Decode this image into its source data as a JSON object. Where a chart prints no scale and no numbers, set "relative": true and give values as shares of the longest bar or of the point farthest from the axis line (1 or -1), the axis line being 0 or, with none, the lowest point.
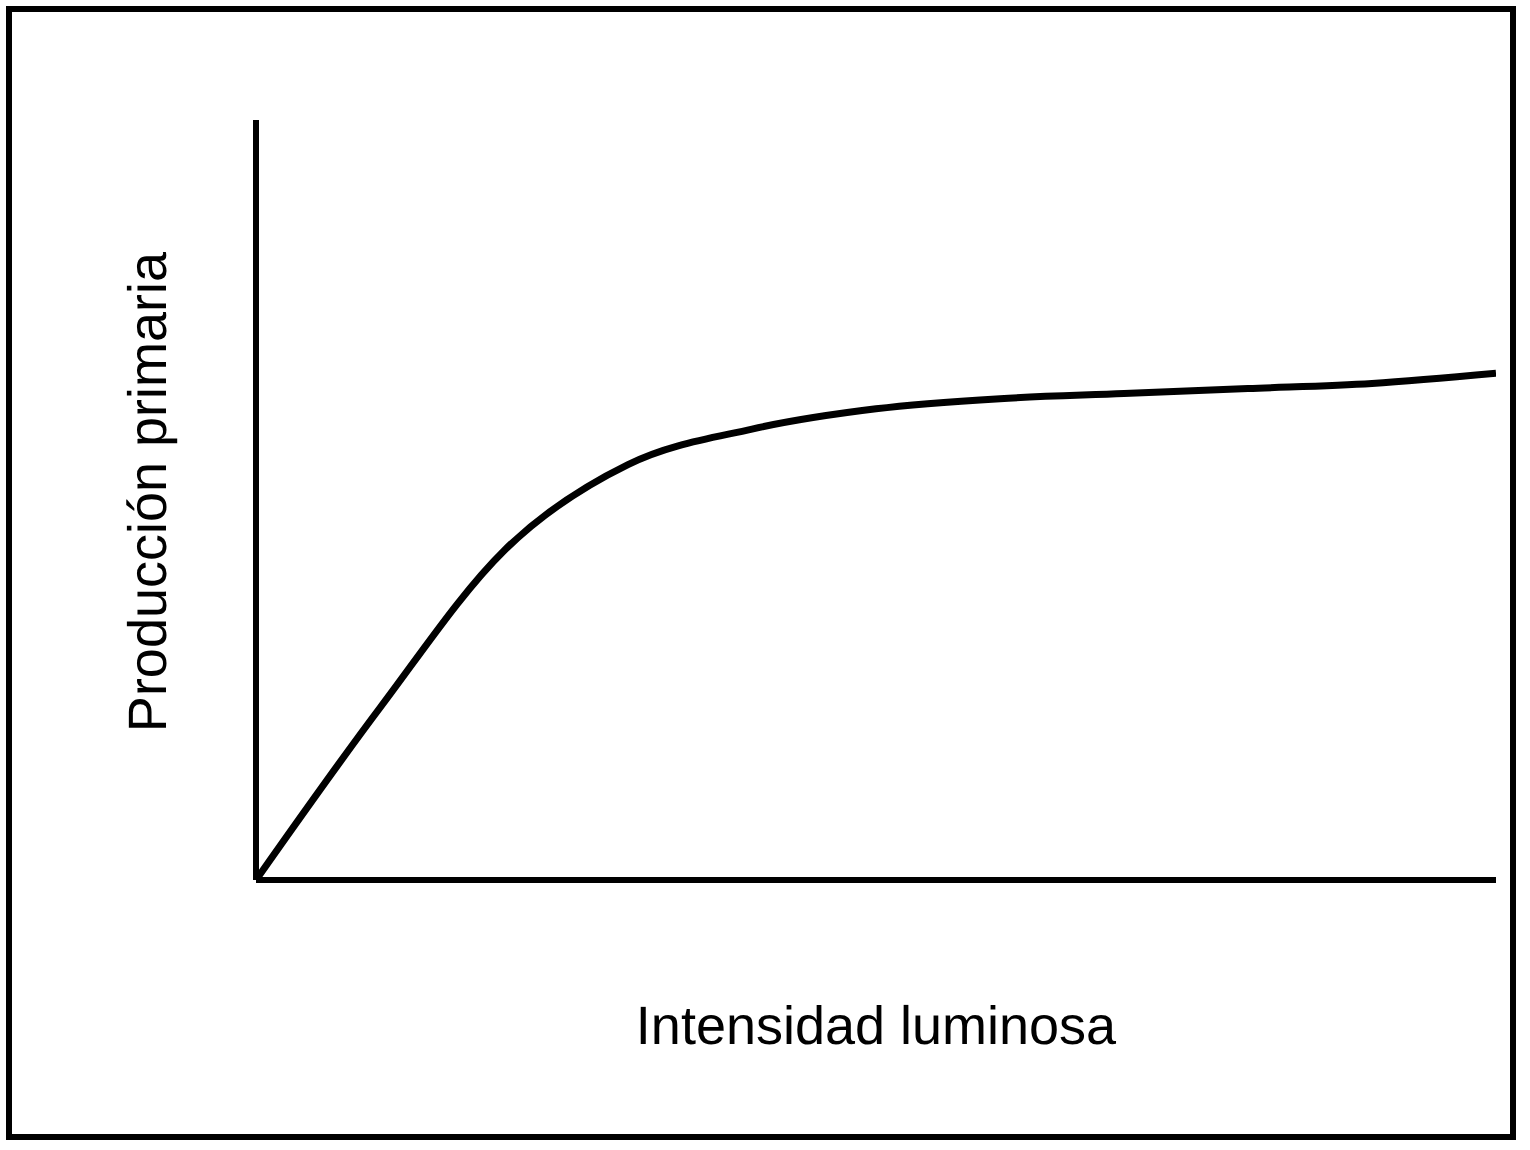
{
  "chart_data": {
    "type": "line",
    "xlabel": "Intensidad luminosa",
    "ylabel": "Producción primaria",
    "relative": true,
    "categories": [
      null,
      null,
      null,
      null,
      null,
      null,
      null,
      null,
      null,
      null,
      null
    ],
    "series": [
      {
        "color": "#000000",
        "values": [
          0,
          0.34,
          0.65,
          0.82,
          0.89,
          0.93,
          0.95,
          0.96,
          0.97,
          0.98,
          1
        ]
      }
    ],
    "grid": false,
    "legend": false,
    "marker": "none",
    "line_style": "solid"
  }
}
